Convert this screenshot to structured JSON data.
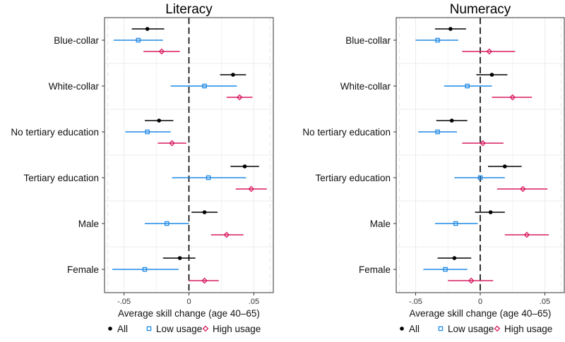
{
  "colors": {
    "all": "#000000",
    "low": "#1e88e5",
    "high": "#d81b60",
    "grid": "#ebebeb",
    "frame": "#333333"
  },
  "legend": {
    "placement": "bottom",
    "items": [
      {
        "key": "all",
        "label": "All",
        "marker": "circle"
      },
      {
        "key": "low",
        "label": "Low usage",
        "marker": "square"
      },
      {
        "key": "high",
        "label": "High usage",
        "marker": "diamond"
      }
    ]
  },
  "chart_data": [
    {
      "type": "dot-and-whisker",
      "title": "Literacy",
      "xlabel": "Average skill change (age 40–65)",
      "ylabel": "",
      "xlim": [
        -0.065,
        0.065
      ],
      "xticks": [
        -0.05,
        0,
        0.05
      ],
      "xtick_labels": [
        "-.05",
        "0",
        ".05"
      ],
      "reference_line": 0,
      "categories": [
        "Blue-collar",
        "White-collar",
        "No tertiary education",
        "Tertiary education",
        "Male",
        "Female"
      ],
      "series": [
        {
          "name": "All",
          "key": "all",
          "values": [
            -0.032,
            0.034,
            -0.023,
            0.043,
            0.012,
            -0.007
          ],
          "ci_low": [
            -0.044,
            0.024,
            -0.034,
            0.032,
            0.002,
            -0.02
          ],
          "ci_high": [
            -0.019,
            0.044,
            -0.012,
            0.054,
            0.022,
            0.005
          ]
        },
        {
          "name": "Low usage",
          "key": "low",
          "values": [
            -0.039,
            0.012,
            -0.032,
            0.015,
            -0.017,
            -0.034
          ],
          "ci_low": [
            -0.058,
            -0.014,
            -0.049,
            -0.013,
            -0.034,
            -0.059
          ],
          "ci_high": [
            -0.02,
            0.037,
            -0.014,
            0.044,
            0.0,
            -0.008
          ]
        },
        {
          "name": "High usage",
          "key": "high",
          "values": [
            -0.021,
            0.039,
            -0.013,
            0.048,
            0.029,
            0.012
          ],
          "ci_low": [
            -0.035,
            0.029,
            -0.024,
            0.036,
            0.017,
            0.0
          ],
          "ci_high": [
            -0.007,
            0.049,
            -0.002,
            0.06,
            0.042,
            0.023
          ]
        }
      ]
    },
    {
      "type": "dot-and-whisker",
      "title": "Numeracy",
      "xlabel": "Average skill change (age 40–65)",
      "ylabel": "",
      "xlim": [
        -0.065,
        0.065
      ],
      "xticks": [
        -0.05,
        0,
        0.05
      ],
      "xtick_labels": [
        "-.05",
        "0",
        ".05"
      ],
      "reference_line": 0,
      "categories": [
        "Blue-collar",
        "White-collar",
        "No tertiary education",
        "Tertiary education",
        "Male",
        "Female"
      ],
      "series": [
        {
          "name": "All",
          "key": "all",
          "values": [
            -0.023,
            0.009,
            -0.022,
            0.019,
            0.008,
            -0.02
          ],
          "ci_low": [
            -0.035,
            -0.003,
            -0.034,
            0.006,
            -0.004,
            -0.033
          ],
          "ci_high": [
            -0.011,
            0.021,
            -0.01,
            0.032,
            0.019,
            -0.007
          ]
        },
        {
          "name": "Low usage",
          "key": "low",
          "values": [
            -0.033,
            -0.01,
            -0.033,
            0.0,
            -0.019,
            -0.027
          ],
          "ci_low": [
            -0.05,
            -0.028,
            -0.048,
            -0.02,
            -0.035,
            -0.044
          ],
          "ci_high": [
            -0.017,
            0.009,
            -0.018,
            0.019,
            -0.002,
            -0.01
          ]
        },
        {
          "name": "High usage",
          "key": "high",
          "values": [
            0.007,
            0.025,
            0.002,
            0.033,
            0.036,
            -0.007
          ],
          "ci_low": [
            -0.014,
            0.009,
            -0.014,
            0.013,
            0.019,
            -0.025
          ],
          "ci_high": [
            0.027,
            0.04,
            0.018,
            0.052,
            0.053,
            0.01
          ]
        }
      ]
    }
  ]
}
